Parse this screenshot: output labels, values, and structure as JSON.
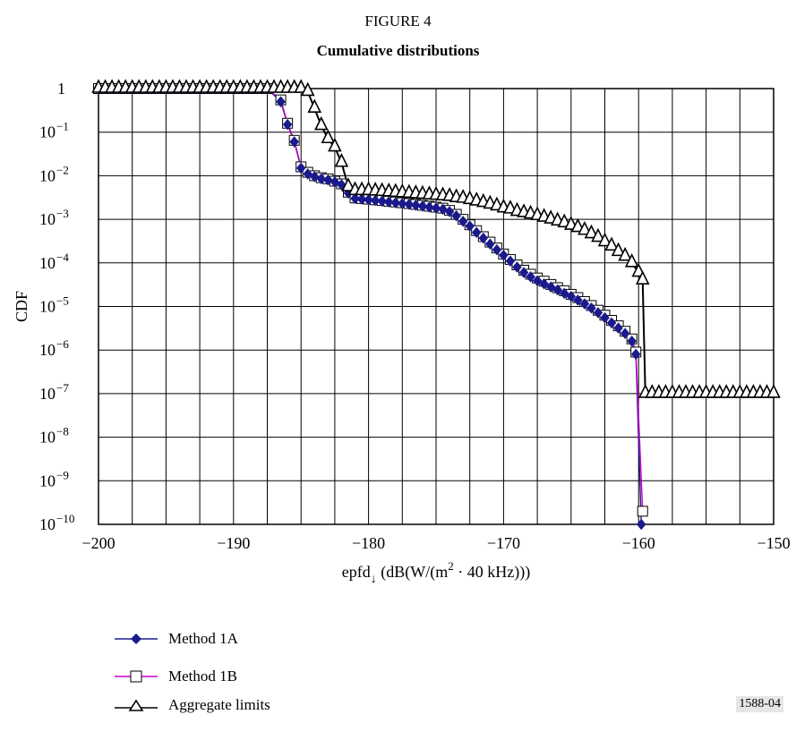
{
  "figure_label": "FIGURE 4",
  "chart_data": {
    "type": "line",
    "title": "Cumulative distributions",
    "xlabel": "epfd",
    "xlabel_sub": "↓",
    "xlabel_suffix": " (dB(W/(m",
    "xlabel_sup": "2",
    "xlabel_end": " · 40 kHz)))",
    "ylabel": "CDF",
    "xlim": [
      -200,
      -150
    ],
    "ylim_exponent": [
      -10,
      0
    ],
    "y_scale": "log",
    "grid": true,
    "legend_position": "bottom-left",
    "x_ticks": [
      "−200",
      "−190",
      "−180",
      "−170",
      "−160",
      "−150"
    ],
    "y_ticks": [
      {
        "base": "1",
        "exp": ""
      },
      {
        "base": "10",
        "exp": "−1"
      },
      {
        "base": "10",
        "exp": "−2"
      },
      {
        "base": "10",
        "exp": "−3"
      },
      {
        "base": "10",
        "exp": "−4"
      },
      {
        "base": "10",
        "exp": "−5"
      },
      {
        "base": "10",
        "exp": "−6"
      },
      {
        "base": "10",
        "exp": "−7"
      },
      {
        "base": "10",
        "exp": "−8"
      },
      {
        "base": "10",
        "exp": "−9"
      },
      {
        "base": "10",
        "exp": "−10"
      }
    ],
    "series": [
      {
        "name": "Method 1A",
        "color": "#1a1a8c",
        "marker": "diamond",
        "points": [
          [
            -200,
            1
          ],
          [
            -199.5,
            1
          ],
          [
            -199,
            1
          ],
          [
            -198.5,
            1
          ],
          [
            -198,
            1
          ],
          [
            -197.5,
            1
          ],
          [
            -197,
            1
          ],
          [
            -196.5,
            1
          ],
          [
            -196,
            1
          ],
          [
            -195.5,
            1
          ],
          [
            -195,
            1
          ],
          [
            -194.5,
            1
          ],
          [
            -194,
            1
          ],
          [
            -193.5,
            1
          ],
          [
            -193,
            1
          ],
          [
            -192.5,
            1
          ],
          [
            -192,
            1
          ],
          [
            -191.5,
            1
          ],
          [
            -191,
            1
          ],
          [
            -190.5,
            1
          ],
          [
            -190,
            1
          ],
          [
            -189.5,
            1
          ],
          [
            -189,
            1
          ],
          [
            -188.5,
            1
          ],
          [
            -188,
            1
          ],
          [
            -187.5,
            1
          ],
          [
            -186.5,
            0.5
          ],
          [
            -186,
            0.15
          ],
          [
            -185.5,
            0.06
          ],
          [
            -185,
            0.015
          ],
          [
            -184.5,
            0.011
          ],
          [
            -184,
            0.0095
          ],
          [
            -183.5,
            0.0085
          ],
          [
            -183,
            0.008
          ],
          [
            -182.5,
            0.0072
          ],
          [
            -182,
            0.0062
          ],
          [
            -181.5,
            0.004
          ],
          [
            -181,
            0.003
          ],
          [
            -180.5,
            0.0029
          ],
          [
            -180,
            0.0028
          ],
          [
            -179.5,
            0.0027
          ],
          [
            -179,
            0.0026
          ],
          [
            -178.5,
            0.0025
          ],
          [
            -178,
            0.0024
          ],
          [
            -177.5,
            0.0023
          ],
          [
            -177,
            0.0022
          ],
          [
            -176.5,
            0.0021
          ],
          [
            -176,
            0.002
          ],
          [
            -175.5,
            0.0019
          ],
          [
            -175,
            0.0018
          ],
          [
            -174.5,
            0.0017
          ],
          [
            -174,
            0.0015
          ],
          [
            -173.5,
            0.0012
          ],
          [
            -173,
            0.0009
          ],
          [
            -172.5,
            0.0007
          ],
          [
            -172,
            0.0005
          ],
          [
            -171.5,
            0.00037
          ],
          [
            -171,
            0.00027
          ],
          [
            -170.5,
            0.0002
          ],
          [
            -170,
            0.00015
          ],
          [
            -169.5,
            0.00011
          ],
          [
            -169,
            8e-05
          ],
          [
            -168.5,
            6e-05
          ],
          [
            -168,
            4.8e-05
          ],
          [
            -167.5,
            3.9e-05
          ],
          [
            -167,
            3.3e-05
          ],
          [
            -166.5,
            2.8e-05
          ],
          [
            -166,
            2.4e-05
          ],
          [
            -165.5,
            2e-05
          ],
          [
            -165,
            1.7e-05
          ],
          [
            -164.5,
            1.4e-05
          ],
          [
            -164,
            1.15e-05
          ],
          [
            -163.5,
            9.2e-06
          ],
          [
            -163,
            7.2e-06
          ],
          [
            -162.5,
            5.5e-06
          ],
          [
            -162,
            4.2e-06
          ],
          [
            -161.5,
            3.2e-06
          ],
          [
            -161,
            2.4e-06
          ],
          [
            -160.5,
            1.6e-06
          ],
          [
            -160.2,
            8e-07
          ],
          [
            -159.8,
            1e-10
          ]
        ]
      },
      {
        "name": "Method 1B",
        "color": "#cc00cc",
        "marker": "square",
        "points": [
          [
            -200,
            1
          ],
          [
            -199.5,
            1
          ],
          [
            -199,
            1
          ],
          [
            -198.5,
            1
          ],
          [
            -198,
            1
          ],
          [
            -197.5,
            1
          ],
          [
            -197,
            1
          ],
          [
            -196.5,
            1
          ],
          [
            -196,
            1
          ],
          [
            -195.5,
            1
          ],
          [
            -195,
            1
          ],
          [
            -194.5,
            1
          ],
          [
            -194,
            1
          ],
          [
            -193.5,
            1
          ],
          [
            -193,
            1
          ],
          [
            -192.5,
            1
          ],
          [
            -192,
            1
          ],
          [
            -191.5,
            1
          ],
          [
            -191,
            1
          ],
          [
            -190.5,
            1
          ],
          [
            -190,
            1
          ],
          [
            -189.5,
            1
          ],
          [
            -189,
            1
          ],
          [
            -188.5,
            1
          ],
          [
            -188,
            1
          ],
          [
            -187.5,
            1
          ],
          [
            -186.5,
            0.55
          ],
          [
            -186,
            0.16
          ],
          [
            -185.5,
            0.065
          ],
          [
            -185,
            0.016
          ],
          [
            -184.5,
            0.012
          ],
          [
            -184,
            0.01
          ],
          [
            -183.5,
            0.009
          ],
          [
            -183,
            0.0085
          ],
          [
            -182.5,
            0.0075
          ],
          [
            -182,
            0.0065
          ],
          [
            -181.5,
            0.0042
          ],
          [
            -181,
            0.0031
          ],
          [
            -180.5,
            0.003
          ],
          [
            -180,
            0.0029
          ],
          [
            -179.5,
            0.0028
          ],
          [
            -179,
            0.0027
          ],
          [
            -178.5,
            0.0026
          ],
          [
            -178,
            0.0025
          ],
          [
            -177.5,
            0.0024
          ],
          [
            -177,
            0.0023
          ],
          [
            -176.5,
            0.0022
          ],
          [
            -176,
            0.0021
          ],
          [
            -175.5,
            0.002
          ],
          [
            -175,
            0.0019
          ],
          [
            -174.5,
            0.0018
          ],
          [
            -174,
            0.0016
          ],
          [
            -173.5,
            0.0013
          ],
          [
            -173,
            0.001
          ],
          [
            -172.5,
            0.00075
          ],
          [
            -172,
            0.00055
          ],
          [
            -171.5,
            0.0004
          ],
          [
            -171,
            0.0003
          ],
          [
            -170.5,
            0.00022
          ],
          [
            -170,
            0.00016
          ],
          [
            -169.5,
            0.00012
          ],
          [
            -169,
            9e-05
          ],
          [
            -168.5,
            6.8e-05
          ],
          [
            -168,
            5.5e-05
          ],
          [
            -167.5,
            4.5e-05
          ],
          [
            -167,
            3.8e-05
          ],
          [
            -166.5,
            3.2e-05
          ],
          [
            -166,
            2.7e-05
          ],
          [
            -165.5,
            2.3e-05
          ],
          [
            -165,
            1.9e-05
          ],
          [
            -164.5,
            1.6e-05
          ],
          [
            -164,
            1.3e-05
          ],
          [
            -163.5,
            1.05e-05
          ],
          [
            -163,
            8.2e-06
          ],
          [
            -162.5,
            6.3e-06
          ],
          [
            -162,
            4.8e-06
          ],
          [
            -161.5,
            3.6e-06
          ],
          [
            -161,
            2.7e-06
          ],
          [
            -160.5,
            1.8e-06
          ],
          [
            -160.2,
            9e-07
          ],
          [
            -159.7,
            2e-10
          ]
        ]
      },
      {
        "name": "Aggregate limits",
        "color": "#000000",
        "marker": "triangle",
        "points": [
          [
            -200,
            1
          ],
          [
            -199.5,
            1
          ],
          [
            -199,
            1
          ],
          [
            -198.5,
            1
          ],
          [
            -198,
            1
          ],
          [
            -197.5,
            1
          ],
          [
            -197,
            1
          ],
          [
            -196.5,
            1
          ],
          [
            -196,
            1
          ],
          [
            -195.5,
            1
          ],
          [
            -195,
            1
          ],
          [
            -194.5,
            1
          ],
          [
            -194,
            1
          ],
          [
            -193.5,
            1
          ],
          [
            -193,
            1
          ],
          [
            -192.5,
            1
          ],
          [
            -192,
            1
          ],
          [
            -191.5,
            1
          ],
          [
            -191,
            1
          ],
          [
            -190.5,
            1
          ],
          [
            -190,
            1
          ],
          [
            -189.5,
            1
          ],
          [
            -189,
            1
          ],
          [
            -188.5,
            1
          ],
          [
            -188,
            1
          ],
          [
            -187.5,
            1
          ],
          [
            -187,
            1
          ],
          [
            -186.5,
            1
          ],
          [
            -186,
            1
          ],
          [
            -185.5,
            1
          ],
          [
            -185,
            1
          ],
          [
            -184.5,
            0.85
          ],
          [
            -184,
            0.35
          ],
          [
            -183.5,
            0.14
          ],
          [
            -183,
            0.07
          ],
          [
            -182.5,
            0.045
          ],
          [
            -182,
            0.02
          ],
          [
            -181.5,
            0.0055
          ],
          [
            -181,
            0.0045
          ],
          [
            -180.5,
            0.0045
          ],
          [
            -180,
            0.0045
          ],
          [
            -179.5,
            0.0044
          ],
          [
            -179,
            0.0043
          ],
          [
            -178.5,
            0.0042
          ],
          [
            -178,
            0.0041
          ],
          [
            -177.5,
            0.004
          ],
          [
            -177,
            0.0039
          ],
          [
            -176.5,
            0.0038
          ],
          [
            -176,
            0.0037
          ],
          [
            -175.5,
            0.0036
          ],
          [
            -175,
            0.0035
          ],
          [
            -174.5,
            0.0034
          ],
          [
            -174,
            0.0033
          ],
          [
            -173.5,
            0.0031
          ],
          [
            -173,
            0.003
          ],
          [
            -172.5,
            0.0028
          ],
          [
            -172,
            0.0026
          ],
          [
            -171.5,
            0.0024
          ],
          [
            -171,
            0.0022
          ],
          [
            -170.5,
            0.002
          ],
          [
            -170,
            0.0018
          ],
          [
            -169.5,
            0.0017
          ],
          [
            -169,
            0.0015
          ],
          [
            -168.5,
            0.0014
          ],
          [
            -168,
            0.0013
          ],
          [
            -167.5,
            0.0012
          ],
          [
            -167,
            0.0011
          ],
          [
            -166.5,
            0.001
          ],
          [
            -166,
            0.0009
          ],
          [
            -165.5,
            0.00082
          ],
          [
            -165,
            0.00072
          ],
          [
            -164.5,
            0.00064
          ],
          [
            -164,
            0.00055
          ],
          [
            -163.5,
            0.00046
          ],
          [
            -163,
            0.00038
          ],
          [
            -162.5,
            0.0003
          ],
          [
            -162,
            0.00024
          ],
          [
            -161.5,
            0.00018
          ],
          [
            -161,
            0.00014
          ],
          [
            -160.5,
            0.0001
          ],
          [
            -160,
            6e-05
          ],
          [
            -159.7,
            4e-05
          ],
          [
            -159.5,
            1e-07
          ],
          [
            -159,
            1e-07
          ],
          [
            -158.5,
            1e-07
          ],
          [
            -158,
            1e-07
          ],
          [
            -157.5,
            1e-07
          ],
          [
            -157,
            1e-07
          ],
          [
            -156.5,
            1e-07
          ],
          [
            -156,
            1e-07
          ],
          [
            -155.5,
            1e-07
          ],
          [
            -155,
            1e-07
          ],
          [
            -154.5,
            1e-07
          ],
          [
            -154,
            1e-07
          ],
          [
            -153.5,
            1e-07
          ],
          [
            -153,
            1e-07
          ],
          [
            -152.5,
            1e-07
          ],
          [
            -152,
            1e-07
          ],
          [
            -151.5,
            1e-07
          ],
          [
            -151,
            1e-07
          ],
          [
            -150.5,
            1e-07
          ],
          [
            -150,
            1e-07
          ]
        ]
      }
    ]
  },
  "figure_code": "1588-04"
}
